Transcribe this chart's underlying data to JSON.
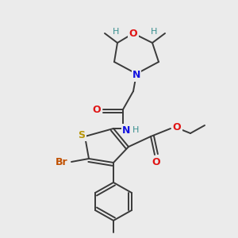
{
  "background_color": "#ebebeb",
  "bond_color": "#3a3a3a",
  "bond_width": 1.4,
  "dbo": 0.015,
  "colors": {
    "S": "#b8960a",
    "N": "#1414e0",
    "O": "#e01414",
    "Br": "#c05000",
    "H": "#3a9090",
    "C": "#3a3a3a"
  }
}
